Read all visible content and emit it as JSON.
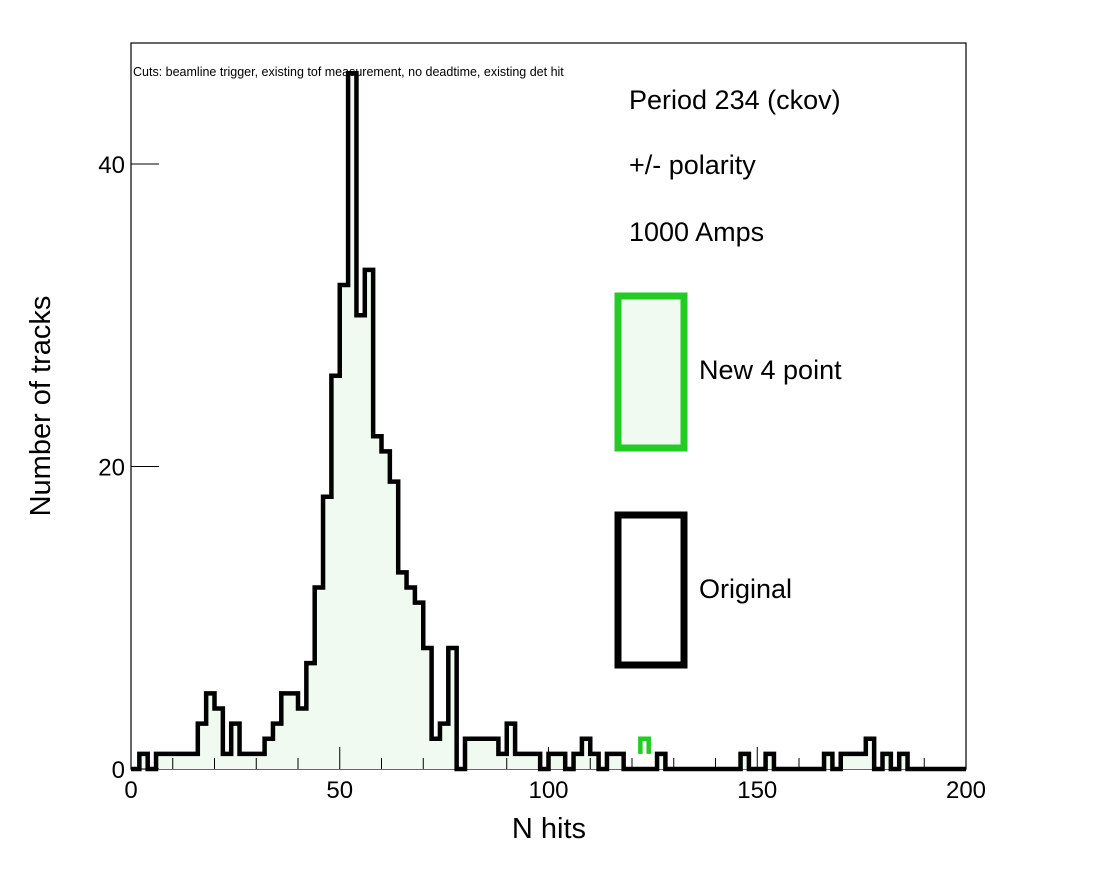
{
  "chart_data": {
    "type": "histogram",
    "xlabel": "N hits",
    "ylabel": "Number of tracks",
    "xlim": [
      0,
      200
    ],
    "ylim": [
      0,
      48
    ],
    "x_ticks": [
      "0",
      "50",
      "100",
      "150",
      "200"
    ],
    "y_ticks": [
      "0",
      "20",
      "40"
    ],
    "grid": false,
    "cuts_note": "Cuts: beamline trigger, existing tof measurement, no deadtime, existing det hit",
    "annotations": [
      "Period 234 (ckov)",
      "+/- polarity",
      "1000 Amps"
    ],
    "legend": {
      "placement": "right",
      "entries": [
        {
          "label": "New 4 point",
          "color": "#22cc22",
          "fill": "#f1faf0"
        },
        {
          "label": "Original",
          "color": "#000000",
          "fill": "#ffffff"
        }
      ]
    },
    "bin_width": 2,
    "series": [
      {
        "name": "Original",
        "color": "#000000",
        "fill": "#f1faf0",
        "bin_starts": [
          0,
          2,
          4,
          6,
          8,
          10,
          12,
          14,
          16,
          18,
          20,
          22,
          24,
          26,
          28,
          30,
          32,
          34,
          36,
          38,
          40,
          42,
          44,
          46,
          48,
          50,
          52,
          54,
          56,
          58,
          60,
          62,
          64,
          66,
          68,
          70,
          72,
          74,
          76,
          78,
          80,
          82,
          84,
          86,
          88,
          90,
          92,
          94,
          96,
          98,
          100,
          102,
          104,
          106,
          108,
          110,
          112,
          114,
          116,
          118,
          120,
          122,
          124,
          126,
          128,
          130,
          132,
          134,
          136,
          138,
          140,
          142,
          144,
          146,
          148,
          150,
          152,
          154,
          156,
          158,
          160,
          162,
          164,
          166,
          168,
          170,
          172,
          174,
          176,
          178,
          180,
          182,
          184,
          186,
          188,
          190,
          192,
          194,
          196,
          198
        ],
        "values": [
          0,
          1,
          0,
          1,
          1,
          1,
          1,
          1,
          3,
          5,
          4,
          1,
          3,
          1,
          1,
          1,
          2,
          3,
          5,
          5,
          4,
          7,
          12,
          18,
          26,
          32,
          46,
          30,
          33,
          22,
          21,
          19,
          13,
          12,
          11,
          8,
          2,
          3,
          8,
          0,
          2,
          2,
          2,
          2,
          1,
          3,
          1,
          1,
          1,
          0,
          1,
          1,
          0,
          1,
          2,
          1,
          0,
          1,
          1,
          0,
          0,
          0,
          0,
          1,
          0,
          0,
          0,
          0,
          0,
          0,
          0,
          0,
          0,
          1,
          0,
          0,
          1,
          0,
          0,
          0,
          0,
          0,
          0,
          1,
          0,
          1,
          1,
          1,
          2,
          0,
          1,
          0,
          1,
          0,
          0,
          0,
          0,
          0,
          0,
          0
        ],
        "note": "values listed per 2-unit bin"
      },
      {
        "name": "New 4 point",
        "color": "#22cc22",
        "fill": "#f1faf0",
        "bin_starts": [
          122
        ],
        "values": [
          2
        ]
      }
    ]
  }
}
